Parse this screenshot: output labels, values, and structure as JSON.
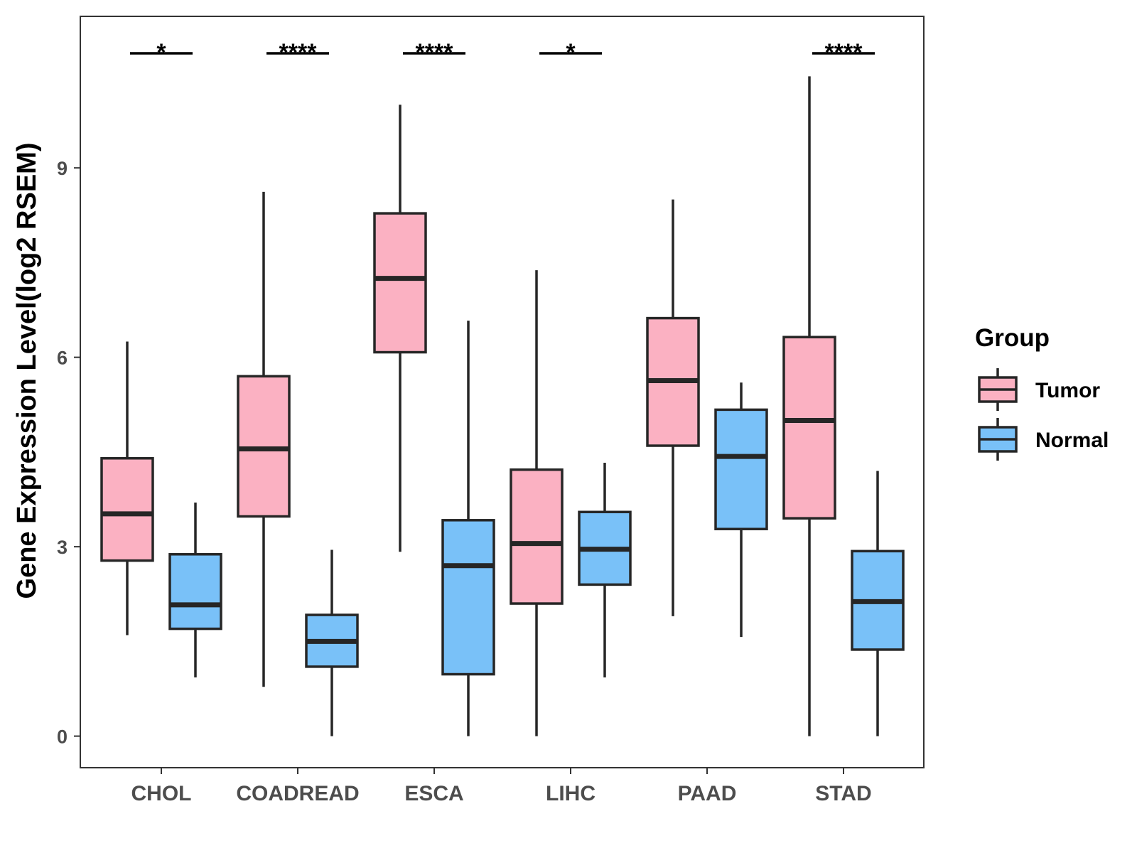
{
  "chart_data": {
    "type": "boxplot",
    "title": "",
    "xlabel": "",
    "ylabel": "Gene Expression Level(log2 RSEM)",
    "ylim": [
      -0.5,
      11.4
    ],
    "yticks": [
      0,
      3,
      6,
      9
    ],
    "ytick_labels": [
      "0",
      "3",
      "6",
      "9"
    ],
    "categories": [
      "CHOL",
      "COADREAD",
      "ESCA",
      "LIHC",
      "PAAD",
      "STAD"
    ],
    "grid": false,
    "legend": {
      "title": "Group",
      "position": "right"
    },
    "series": [
      {
        "name": "Tumor",
        "color": "#FBB1C2",
        "boxes": [
          {
            "min": 1.6,
            "q1": 2.78,
            "median": 3.52,
            "q3": 4.4,
            "max": 6.25
          },
          {
            "min": 0.78,
            "q1": 3.48,
            "median": 4.55,
            "q3": 5.7,
            "max": 8.62
          },
          {
            "min": 2.92,
            "q1": 6.08,
            "median": 7.25,
            "q3": 8.28,
            "max": 10.0
          },
          {
            "min": 0.0,
            "q1": 2.1,
            "median": 3.05,
            "q3": 4.22,
            "max": 7.38
          },
          {
            "min": 1.9,
            "q1": 4.6,
            "median": 5.63,
            "q3": 6.62,
            "max": 8.5
          },
          {
            "min": 0.0,
            "q1": 3.45,
            "median": 5.0,
            "q3": 6.32,
            "max": 10.45
          }
        ]
      },
      {
        "name": "Normal",
        "color": "#79C1F8",
        "boxes": [
          {
            "min": 0.93,
            "q1": 1.7,
            "median": 2.08,
            "q3": 2.88,
            "max": 3.7
          },
          {
            "min": 0.0,
            "q1": 1.1,
            "median": 1.5,
            "q3": 1.92,
            "max": 2.95
          },
          {
            "min": 0.0,
            "q1": 0.98,
            "median": 2.7,
            "q3": 3.42,
            "max": 6.58
          },
          {
            "min": 0.93,
            "q1": 2.4,
            "median": 2.96,
            "q3": 3.55,
            "max": 4.33
          },
          {
            "min": 1.57,
            "q1": 3.28,
            "median": 4.43,
            "q3": 5.17,
            "max": 5.6
          },
          {
            "min": 0.0,
            "q1": 1.37,
            "median": 2.13,
            "q3": 2.93,
            "max": 4.2
          }
        ]
      }
    ],
    "significance": [
      "*",
      "****",
      "****",
      "*",
      "",
      "****"
    ]
  }
}
